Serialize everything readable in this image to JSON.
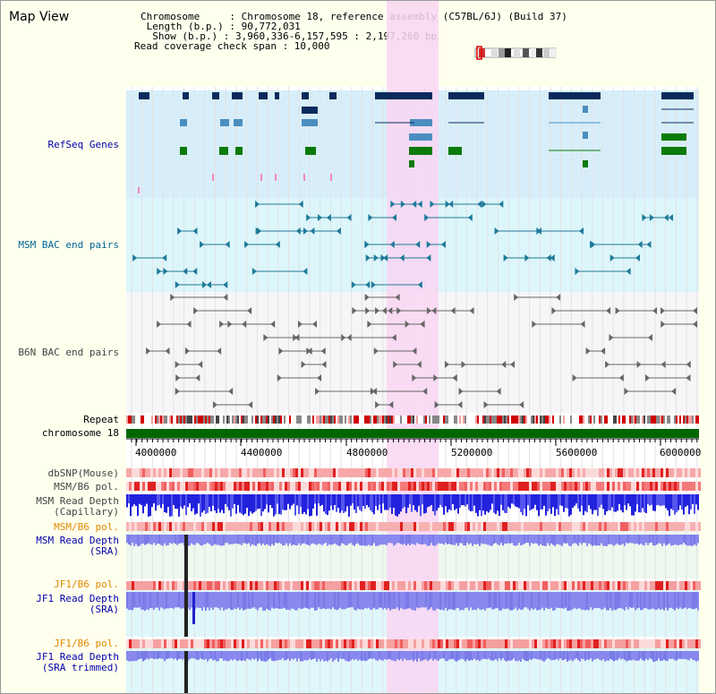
{
  "header": {
    "title": "Map View",
    "info_lines": [
      "Chromosome     : Chromosome 18, reference assembly (C57BL/6J) (Build 37)",
      " Length (b.p.) : 90,772,031",
      "  Show (b.p.) : 3,960,336-6,157,595 : 2,197,260 bp",
      "Read coverage check span : 10,000"
    ]
  },
  "tracks": {
    "refseq": "RefSeq Genes",
    "msm_bac": "MSM BAC end pairs",
    "b6n_bac": "B6N BAC end pairs",
    "repeat": "Repeat",
    "chromosome": "chromosome 18",
    "dbsnp": "dbSNP(Mouse)",
    "msm_b6_pol_1": "MSM/B6 pol.",
    "msm_read_depth_cap_1": "MSM Read Depth",
    "msm_read_depth_cap_2": "(Capillary)",
    "msm_b6_pol_2": "MSM/B6 pol.",
    "msm_read_depth_sra_1": "MSM Read Depth",
    "msm_read_depth_sra_2": "(SRA)",
    "jf1_b6_pol_1": "JF1/B6 pol.",
    "jf1_read_depth_sra_1": "JF1 Read Depth",
    "jf1_read_depth_sra_2": "(SRA)",
    "jf1_b6_pol_2": "JF1/B6 pol.",
    "jf1_read_depth_trim_1": "JF1 Read Depth",
    "jf1_read_depth_trim_2": "(SRA trimmed)"
  },
  "axis": {
    "ticks": [
      "4000000",
      "4400000",
      "4800000",
      "5200000",
      "5600000",
      "6000000"
    ]
  },
  "colors": {
    "highlight": "#f9d6f2",
    "refseq_bg": "#d7eefa",
    "msm_bg": "#dcf6fb",
    "chromosome": "#006600",
    "gene_dark": "#0b2a5c",
    "gene_mid": "#4a8ebf",
    "gene_green": "#0a7a0a",
    "depth_blue": "#2222dd",
    "depth_light": "#8888ee"
  }
}
